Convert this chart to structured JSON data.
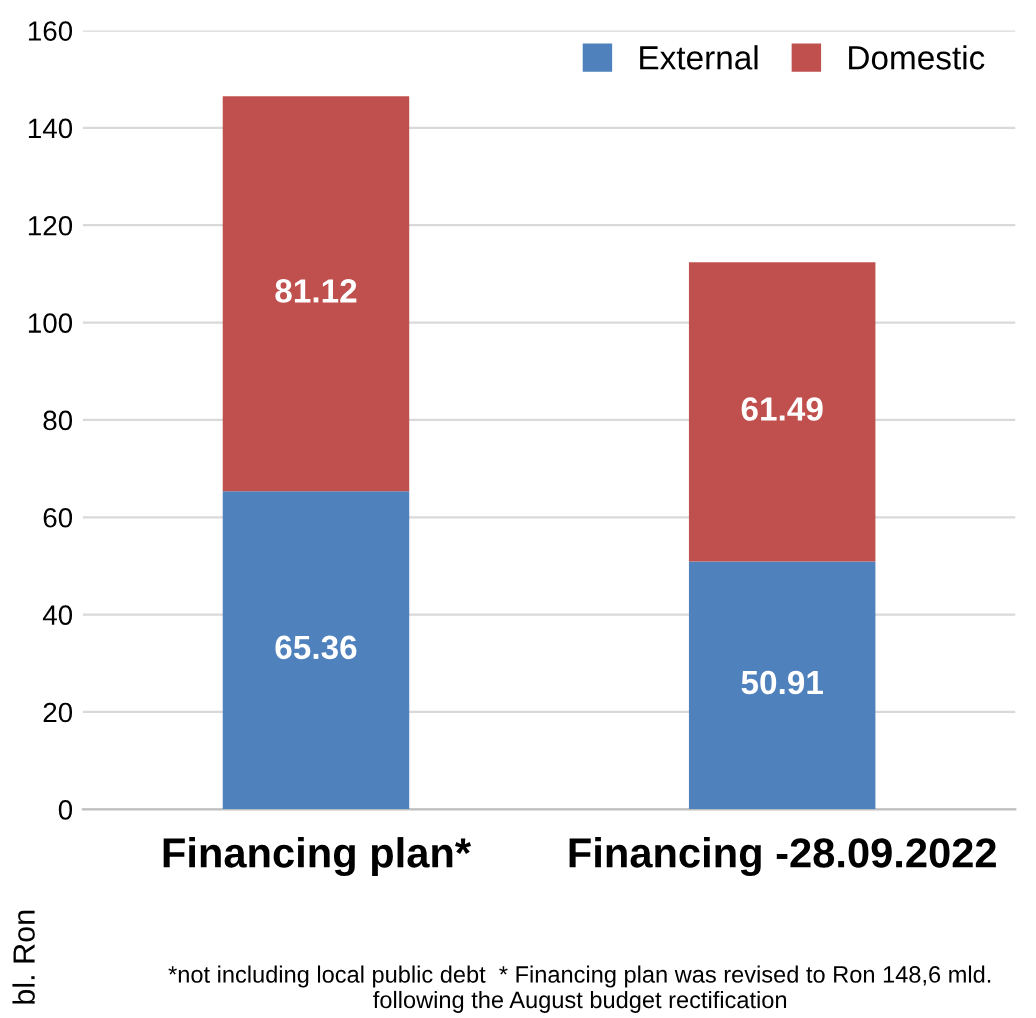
{
  "chart_data": {
    "type": "bar",
    "stacked": true,
    "categories": [
      "Financing plan*",
      "Financing -28.09.2022"
    ],
    "series": [
      {
        "name": "External",
        "color": "#4f81bd",
        "values": [
          65.36,
          50.91
        ]
      },
      {
        "name": "Domestic",
        "color": "#c0504d",
        "values": [
          81.12,
          61.49
        ]
      }
    ],
    "ylabel": "bl. Ron",
    "ylim": [
      0,
      160
    ],
    "yticks": [
      0,
      20,
      40,
      60,
      80,
      100,
      120,
      140,
      160
    ],
    "grid": "y",
    "legend": "top right",
    "data_labels": true,
    "annotations": [
      "*not including local public debt  * Financing plan was revised to Ron 148,6 mld.\nfollowing the August budget rectification"
    ]
  }
}
